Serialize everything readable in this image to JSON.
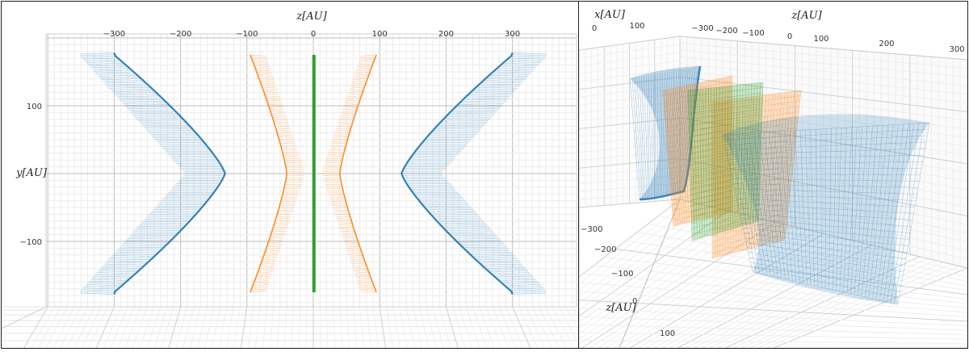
{
  "chart_data": [
    {
      "type": "surface-projection",
      "view": "top",
      "xlabel": "z[AU]",
      "ylabel": "y[AU]",
      "xlim": [
        -350,
        350
      ],
      "ylim": [
        -190,
        190
      ],
      "x_ticks": [
        "−300",
        "−200",
        "−100",
        "0",
        "100",
        "200",
        "300"
      ],
      "x_tick_values": [
        -300,
        -200,
        -100,
        0,
        100,
        200,
        300
      ],
      "y_ticks": [
        "100",
        "−100"
      ],
      "y_tick_values": [
        100,
        -100
      ],
      "grid": true,
      "series": [
        {
          "color": "#1f77b4",
          "role": "outer",
          "vertex_z": 133,
          "tip_z": 300,
          "y_extent": 185,
          "hatch": "dense"
        },
        {
          "color": "#ff7f0e",
          "role": "middle",
          "vertex_z": 40,
          "tip_z": 95,
          "y_extent": 180,
          "hatch": "dense"
        },
        {
          "color": "#2ca02c",
          "role": "center",
          "vertex_z": 2,
          "tip_z": 2,
          "y_extent": 175,
          "hatch": "line"
        }
      ]
    },
    {
      "type": "surface-3d",
      "view": "perspective",
      "labels": [
        "x[AU]",
        "z[AU]",
        "z[AU]"
      ],
      "back_x_ticks": [
        "0",
        "100"
      ],
      "back_z_ticks": [
        "−300",
        "−200",
        "−100",
        "0",
        "100",
        "200",
        "300"
      ],
      "front_z_ticks": [
        "−300",
        "−200",
        "−100",
        "0",
        "100"
      ],
      "grid": true,
      "series_colors": [
        "#1f77b4",
        "#ff7f0e",
        "#2ca02c"
      ]
    }
  ]
}
